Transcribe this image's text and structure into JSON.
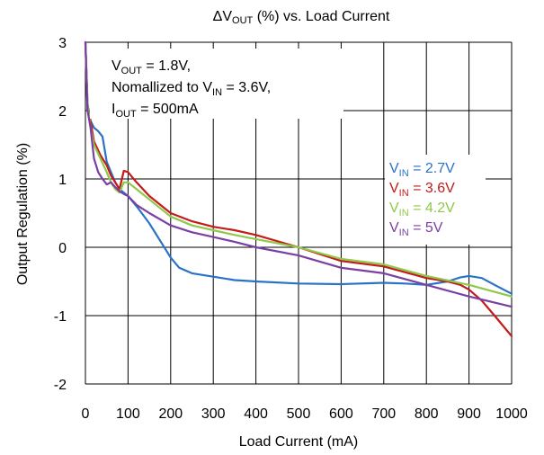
{
  "chart_data": {
    "type": "line",
    "title": {
      "pre": "ΔV",
      "sub": "OUT",
      "post": " (%) vs. Load Current"
    },
    "xlabel": "Load Current (mA)",
    "ylabel": "Output Regulation (%)",
    "xlim": [
      0,
      1000
    ],
    "ylim": [
      -2,
      3
    ],
    "xticks": [
      "0",
      "100",
      "200",
      "300",
      "400",
      "500",
      "600",
      "700",
      "800",
      "900",
      "1000"
    ],
    "yticks": [
      "3",
      "2",
      "1",
      "0",
      "-1",
      "-2"
    ],
    "xtick_values": [
      0,
      100,
      200,
      300,
      400,
      500,
      600,
      700,
      800,
      900,
      1000
    ],
    "ytick_values": [
      3,
      2,
      1,
      0,
      -1,
      -2
    ],
    "grid": true,
    "legend_position": "right",
    "annotation": {
      "line1": {
        "pre": "V",
        "sub": "OUT",
        "post": "  = 1.8V,"
      },
      "line2": {
        "pre": "Nomallized to V",
        "sub": "IN",
        "post": " = 3.6V,"
      },
      "line3": {
        "pre": "I",
        "sub": "OUT",
        "post": " = 500mA"
      }
    },
    "series": [
      {
        "name": "V_IN = 2.7V",
        "label": {
          "pre": "V",
          "sub": "IN",
          "post": " = 2.7V"
        },
        "color": "#2a72c8",
        "x": [
          0,
          5,
          12,
          20,
          30,
          40,
          50,
          60,
          70,
          80,
          90,
          100,
          120,
          150,
          180,
          200,
          220,
          250,
          300,
          350,
          400,
          500,
          600,
          700,
          750,
          800,
          850,
          880,
          900,
          930,
          960,
          1000
        ],
        "y": [
          3,
          2.1,
          1.85,
          1.75,
          1.7,
          1.62,
          1.25,
          1.1,
          0.95,
          0.85,
          0.8,
          0.75,
          0.6,
          0.35,
          0.05,
          -0.15,
          -0.3,
          -0.38,
          -0.43,
          -0.48,
          -0.5,
          -0.53,
          -0.54,
          -0.52,
          -0.53,
          -0.55,
          -0.5,
          -0.44,
          -0.42,
          -0.45,
          -0.55,
          -0.68
        ]
      },
      {
        "name": "V_IN = 3.6V",
        "label": {
          "pre": "V",
          "sub": "IN",
          "post": " = 3.6V"
        },
        "color": "#c41a1a",
        "x": [
          0,
          5,
          12,
          20,
          35,
          50,
          60,
          70,
          80,
          90,
          100,
          120,
          150,
          200,
          250,
          300,
          350,
          400,
          500,
          600,
          700,
          800,
          850,
          880,
          900,
          930,
          960,
          1000
        ],
        "y": [
          3,
          2.0,
          1.85,
          1.55,
          1.35,
          1.2,
          1.05,
          0.95,
          0.85,
          1.12,
          1.1,
          0.95,
          0.75,
          0.5,
          0.38,
          0.3,
          0.25,
          0.18,
          0.0,
          -0.2,
          -0.28,
          -0.45,
          -0.5,
          -0.55,
          -0.62,
          -0.78,
          -1.0,
          -1.3
        ]
      },
      {
        "name": "V_IN = 4.2V",
        "label": {
          "pre": "V",
          "sub": "IN",
          "post": " = 4.2V"
        },
        "color": "#8fc84a",
        "x": [
          0,
          5,
          12,
          20,
          35,
          50,
          60,
          70,
          80,
          90,
          100,
          120,
          150,
          200,
          250,
          300,
          350,
          400,
          500,
          600,
          700,
          800,
          900,
          1000
        ],
        "y": [
          3,
          2.1,
          1.75,
          1.5,
          1.3,
          1.1,
          0.95,
          0.85,
          0.8,
          0.95,
          0.95,
          0.85,
          0.7,
          0.45,
          0.32,
          0.25,
          0.18,
          0.12,
          0.0,
          -0.17,
          -0.25,
          -0.42,
          -0.55,
          -0.72
        ]
      },
      {
        "name": "V_IN = 5V",
        "label": {
          "pre": "V",
          "sub": "IN",
          "post": " = 5V"
        },
        "color": "#7b3fa3",
        "x": [
          0,
          5,
          12,
          20,
          30,
          40,
          50,
          60,
          70,
          80,
          90,
          100,
          120,
          150,
          200,
          250,
          300,
          350,
          400,
          500,
          600,
          700,
          800,
          900,
          1000
        ],
        "y": [
          3,
          2.0,
          1.75,
          1.3,
          1.1,
          1.0,
          0.92,
          0.95,
          0.88,
          0.82,
          0.78,
          0.75,
          0.62,
          0.5,
          0.32,
          0.22,
          0.15,
          0.08,
          0.0,
          -0.12,
          -0.3,
          -0.38,
          -0.55,
          -0.72,
          -0.87
        ]
      }
    ]
  }
}
